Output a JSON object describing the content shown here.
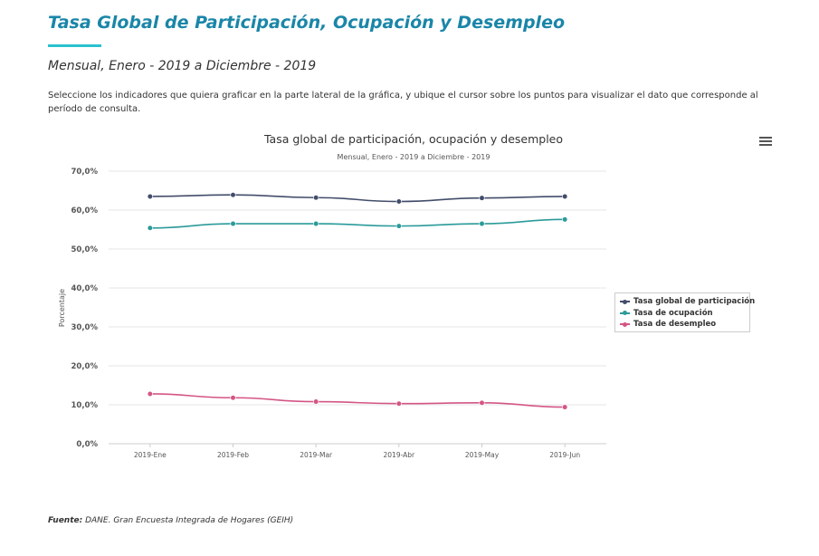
{
  "page": {
    "title": "Tasa Global de Participación, Ocupación y Desempleo",
    "subtitle": "Mensual, Enero - 2019 a Diciembre - 2019",
    "instructions": "Seleccione los indicadores que quiera graficar en la parte lateral de la gráfica, y ubique el cursor sobre los puntos para visualizar el dato que corresponde al período de consulta.",
    "source_label": "Fuente:",
    "source_text": "DANE. Gran Encuesta Integrada de Hogares (GEIH)",
    "menu_icon": "hamburger-menu-icon"
  },
  "chart_data": {
    "type": "line",
    "title": "Tasa global de participación, ocupación y desempleo",
    "subtitle": "Mensual, Enero - 2019 a Diciembre - 2019",
    "xlabel": "",
    "ylabel": "Porcentaje",
    "categories": [
      "2019-Ene",
      "2019-Feb",
      "2019-Mar",
      "2019-Abr",
      "2019-May",
      "2019-Jun"
    ],
    "yticks": [
      "0,0%",
      "10,0%",
      "20,0%",
      "30,0%",
      "40,0%",
      "50,0%",
      "60,0%",
      "70,0%"
    ],
    "ylim": [
      0,
      70
    ],
    "grid": true,
    "legend_position": "right",
    "series": [
      {
        "name": "Tasa global de participación",
        "color": "#434d6b",
        "values": [
          63.5,
          63.9,
          63.2,
          62.2,
          63.1,
          63.5
        ]
      },
      {
        "name": "Tasa de ocupación",
        "color": "#2b9a9a",
        "values": [
          55.4,
          56.5,
          56.5,
          55.9,
          56.5,
          57.6
        ]
      },
      {
        "name": "Tasa de desempleo",
        "color": "#d45585",
        "values": [
          12.8,
          11.8,
          10.8,
          10.3,
          10.5,
          9.4
        ]
      }
    ]
  }
}
